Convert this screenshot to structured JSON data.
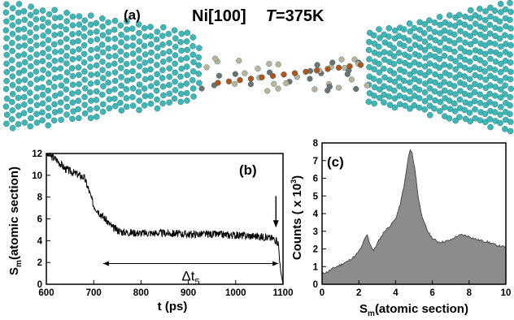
{
  "panel_a": {
    "label": "(a)",
    "title_material": "Ni[100]",
    "title_temp_var": "T",
    "title_temp_value": "=375K",
    "colors": {
      "bulk_atom": "#3fb6b6",
      "chain_atom": "#b0541c",
      "light_atom": "#b9b49a",
      "dark_atom": "#707070"
    }
  },
  "chart_data": [
    {
      "panel": "(b)",
      "type": "line",
      "xlabel": "t (ps)",
      "ylabel_main": "S",
      "ylabel_sub": "m",
      "ylabel_rest": "(atomic section)",
      "xlim": [
        600,
        1100
      ],
      "ylim": [
        0,
        12
      ],
      "x_ticks": [
        "600",
        "700",
        "800",
        "900",
        "1000",
        "1100"
      ],
      "y_ticks": [
        "0",
        "2",
        "4",
        "6",
        "8",
        "10",
        "12"
      ],
      "annotation": "Δt",
      "annotation_sub": "5",
      "interval_start": 720,
      "interval_end": 1090,
      "arrow_marker_x": 1085,
      "series_color": "#000000",
      "series": [
        {
          "x": [
            600,
            620,
            640,
            660,
            680,
            690,
            700,
            720,
            740,
            760,
            800,
            850,
            900,
            950,
            1000,
            1050,
            1080,
            1090,
            1095,
            1100
          ],
          "y": [
            12,
            11.5,
            10.6,
            10.2,
            9.8,
            8.6,
            7.2,
            6.2,
            5.2,
            4.8,
            4.7,
            4.7,
            4.6,
            4.6,
            4.5,
            4.4,
            4.2,
            3.8,
            1.2,
            0
          ]
        }
      ]
    },
    {
      "panel": "(c)",
      "type": "area",
      "xlabel_main": "S",
      "xlabel_sub": "m",
      "xlabel_rest": "(atomic section)",
      "ylabel_prefix": "Counts ( x 10",
      "ylabel_exp": "3",
      "ylabel_suffix": ")",
      "xlim": [
        0,
        10
      ],
      "ylim": [
        0,
        8
      ],
      "x_ticks": [
        "0",
        "2",
        "4",
        "6",
        "8",
        "10"
      ],
      "y_ticks": [
        "0",
        "1",
        "2",
        "3",
        "4",
        "5",
        "6",
        "7",
        "8"
      ],
      "fill_color": "#8c8c8c",
      "series": [
        {
          "x": [
            0,
            0.3,
            0.6,
            1.0,
            1.4,
            1.8,
            2.1,
            2.3,
            2.45,
            2.6,
            2.8,
            3.1,
            3.4,
            3.7,
            4.0,
            4.25,
            4.5,
            4.7,
            4.8,
            4.9,
            5.05,
            5.25,
            5.5,
            5.75,
            6.0,
            6.3,
            6.6,
            7.0,
            7.3,
            7.6,
            8.0,
            8.5,
            9.0,
            9.5,
            10.0
          ],
          "y": [
            0.6,
            0.7,
            0.9,
            1.1,
            1.3,
            1.6,
            2.0,
            2.5,
            2.8,
            2.3,
            1.9,
            2.5,
            3.0,
            3.3,
            3.7,
            4.5,
            5.8,
            7.2,
            7.6,
            7.4,
            6.5,
            4.8,
            3.6,
            3.0,
            2.6,
            2.4,
            2.4,
            2.5,
            2.7,
            2.8,
            2.7,
            2.5,
            2.4,
            2.2,
            2.1
          ]
        }
      ]
    }
  ]
}
